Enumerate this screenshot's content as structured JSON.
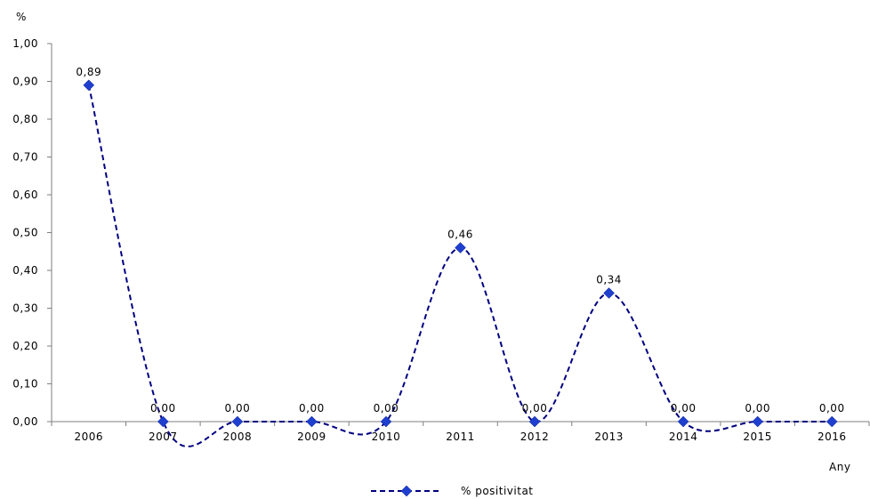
{
  "chart_data": {
    "type": "line",
    "xlabel": "Any",
    "ylabel": "%",
    "ylim": [
      0,
      1.0
    ],
    "yticks": [
      "0,00",
      "0,10",
      "0,20",
      "0,30",
      "0,40",
      "0,50",
      "0,60",
      "0,70",
      "0,80",
      "0,90",
      "1,00"
    ],
    "categories": [
      "2006",
      "2007",
      "2008",
      "2009",
      "2010",
      "2011",
      "2012",
      "2013",
      "2014",
      "2015",
      "2016"
    ],
    "series": [
      {
        "name": "% positivitat",
        "values": [
          0.89,
          0.0,
          0.0,
          0.0,
          0.0,
          0.46,
          0.0,
          0.34,
          0.0,
          0.0,
          0.0
        ],
        "labels": [
          "0,89",
          "0,00",
          "0,00",
          "0,00",
          "0,00",
          "0,46",
          "0,00",
          "0,34",
          "0,00",
          "0,00",
          "0,00"
        ],
        "color": "#000080",
        "marker_color": "#1f3fcf",
        "line_style": "dashed",
        "marker": "diamond",
        "smooth": true
      }
    ],
    "grid": false,
    "legend_position": "bottom"
  }
}
